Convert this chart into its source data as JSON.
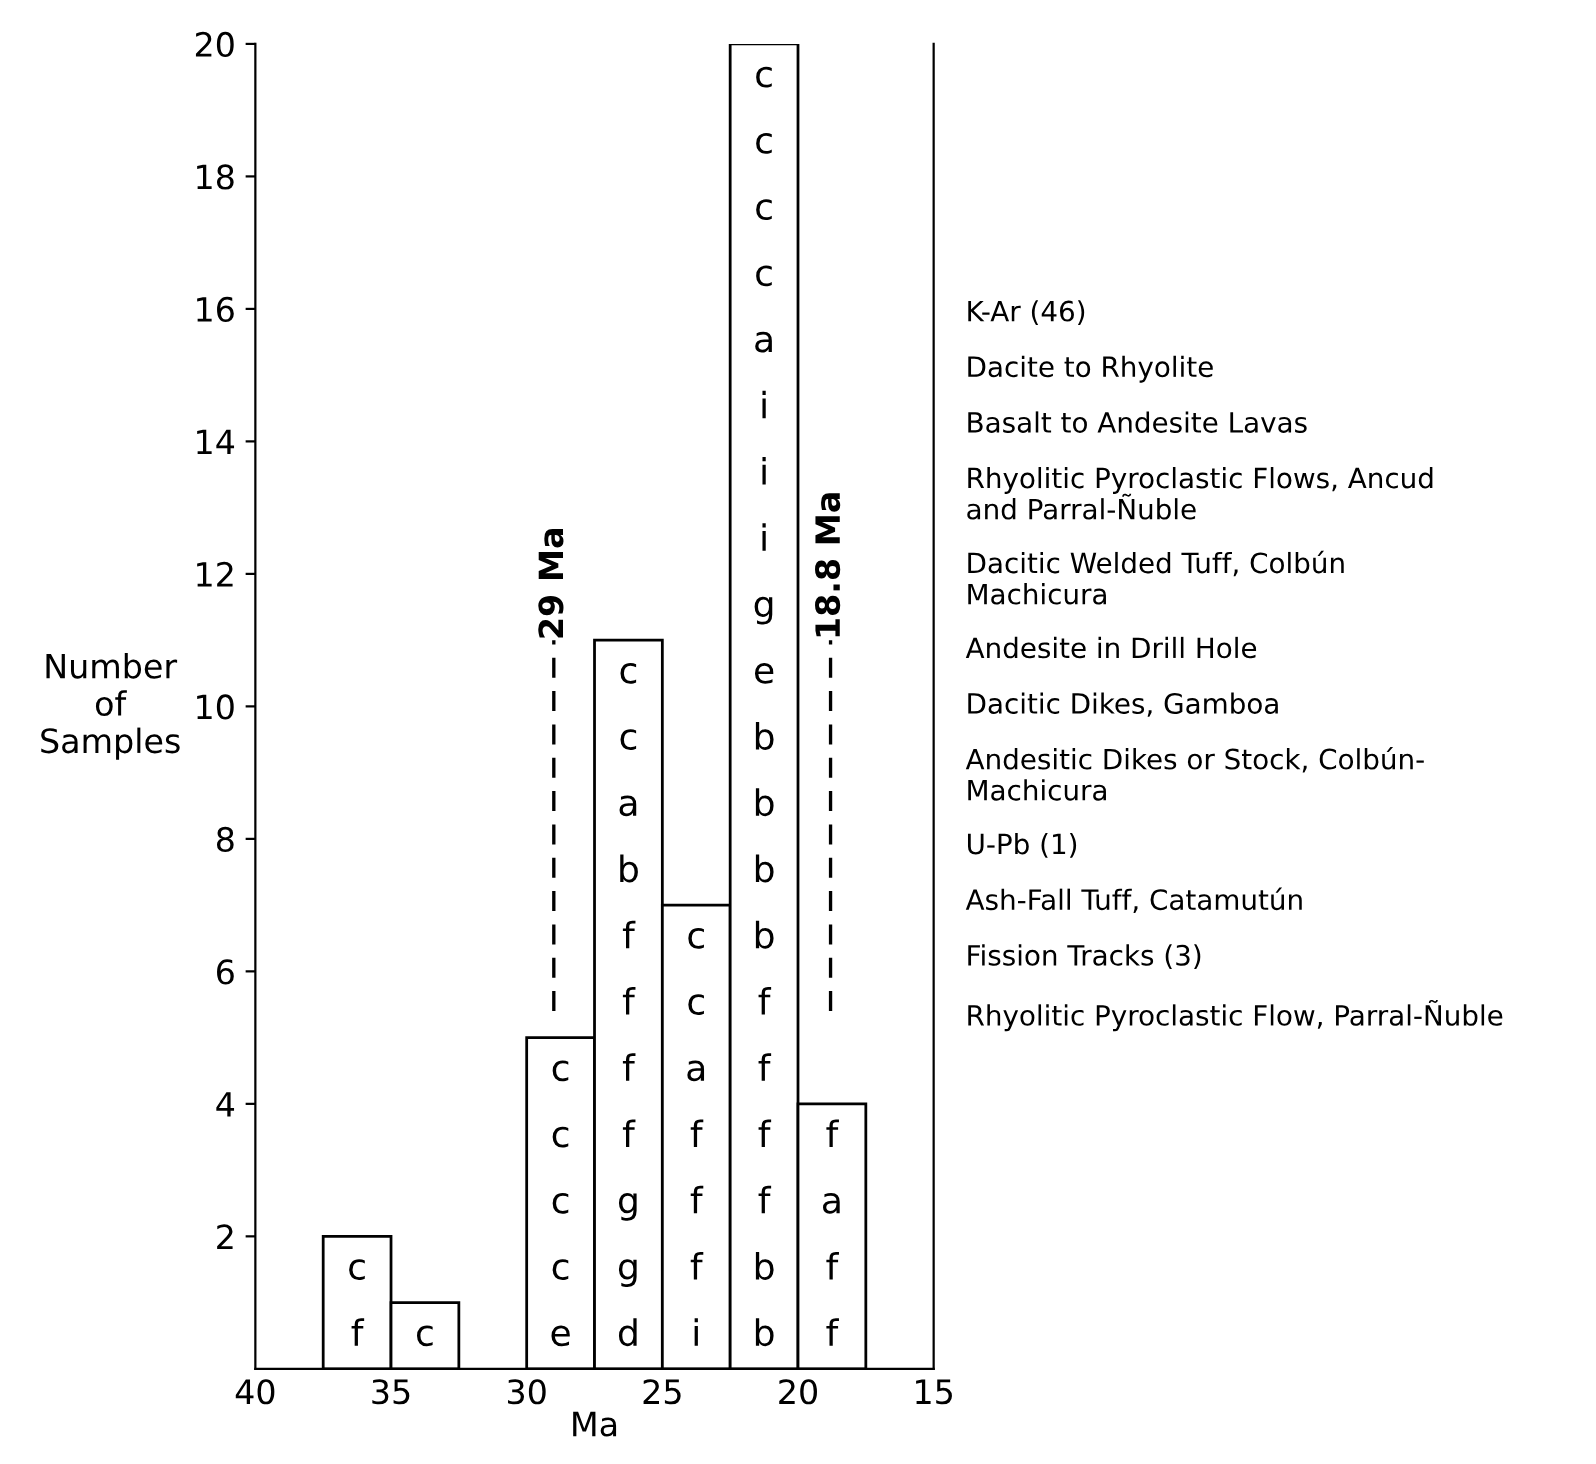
{
  "chart_data": {
    "type": "histogram",
    "bins": [
      37.5,
      35,
      32.5,
      30,
      27.5,
      25,
      22.5,
      20,
      17.5
    ],
    "values": [
      2,
      1,
      0,
      5,
      11,
      7,
      20,
      4
    ],
    "color": "#ffffff",
    "xlabel": "Ma",
    "ylabel": "Number\nof\nSamples",
    "xlim": [
      40,
      15
    ],
    "xticks": [
      40,
      35,
      30,
      25,
      20,
      15
    ],
    "ylim": [
      0,
      20
    ],
    "yticks": [
      2,
      4,
      6,
      8,
      10,
      12,
      14,
      16,
      18,
      20
    ],
    "grid": false,
    "ref_lines": [
      {
        "axis": "x",
        "value": 29,
        "label": "29 Ma",
        "line_style": "dashed"
      },
      {
        "axis": "x",
        "value": 18.8,
        "label": "18.8 Ma",
        "line_style": "dashed"
      }
    ],
    "annotations": [
      "f",
      "c",
      "c",
      "e",
      "c",
      "c",
      "c",
      "c",
      "d",
      "g",
      "g",
      "f",
      "f",
      "f",
      "f",
      "b",
      "a",
      "c",
      "c",
      "i",
      "f",
      "f",
      "f",
      "a",
      "c",
      "c",
      "b",
      "b",
      "f",
      "f",
      "f",
      "f",
      "b",
      "b",
      "b",
      "b",
      "e",
      "g",
      "i",
      "i",
      "i",
      "a",
      "c",
      "c",
      "c",
      "c",
      "f",
      "f",
      "a",
      "f",
      "K-Ar (46)",
      "Dacite to Rhyolite",
      "Basalt to Andesite Lavas",
      "Rhyolitic Pyroclastic Flows, Ancud\nand Parral-Ñuble",
      "Dacitic Welded Tuff, Colbún\nMachicura",
      "Andesite in Drill Hole",
      "Dacitic Dikes, Gamboa",
      "Andesitic Dikes or Stock, Colbún-\nMachicura",
      "U-Pb (1)",
      "Ash-Fall Tuff, Catamutún",
      "Fission Tracks (3)",
      "Rhyolitic Pyroclastic Flow, Parral-Ñuble"
    ]
  }
}
